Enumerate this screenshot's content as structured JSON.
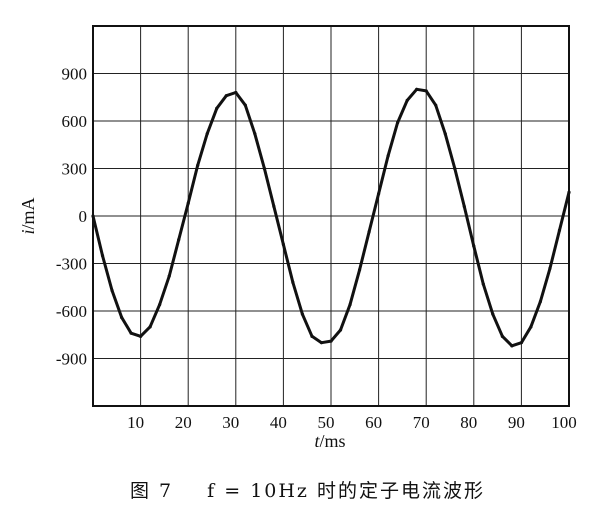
{
  "caption": {
    "figure": "图 7",
    "text": "f = 10Hz 时的定子电流波形"
  },
  "chart_data": {
    "type": "line",
    "title": "",
    "xlabel_var": "t",
    "xlabel_unit": "/ms",
    "ylabel_var": "i",
    "ylabel_unit": "/mA",
    "xlim": [
      0,
      100
    ],
    "ylim": [
      -1200,
      1200
    ],
    "xticks": [
      10,
      20,
      30,
      40,
      50,
      60,
      70,
      80,
      90,
      100
    ],
    "yticks": [
      900,
      600,
      300,
      0,
      -300,
      -600,
      -900
    ],
    "ytick_labels": [
      "900",
      "600",
      "300",
      "0",
      "-300",
      "-600",
      "-900"
    ],
    "grid": true,
    "colors": {
      "line": "#111111",
      "grid": "#222222",
      "background": "#ffffff"
    },
    "series": [
      {
        "x": [
          0,
          2,
          4,
          6,
          8,
          10,
          12,
          14,
          16,
          18,
          20,
          22,
          24,
          26,
          28,
          30,
          32,
          34,
          36,
          38,
          40,
          42,
          44,
          46,
          48,
          50,
          52,
          54,
          56,
          58,
          60,
          62,
          64,
          66,
          68,
          70,
          72,
          74,
          76,
          78,
          80,
          82,
          84,
          86,
          88,
          90,
          92,
          94,
          96,
          98,
          100
        ],
        "values": [
          0,
          -250,
          -470,
          -640,
          -740,
          -760,
          -700,
          -560,
          -380,
          -150,
          80,
          320,
          520,
          680,
          760,
          780,
          700,
          520,
          300,
          60,
          -180,
          -420,
          -620,
          -760,
          -800,
          -790,
          -720,
          -560,
          -340,
          -100,
          140,
          380,
          590,
          730,
          800,
          790,
          700,
          520,
          300,
          60,
          -190,
          -430,
          -620,
          -760,
          -820,
          -800,
          -700,
          -540,
          -330,
          -90,
          150
        ]
      }
    ]
  }
}
